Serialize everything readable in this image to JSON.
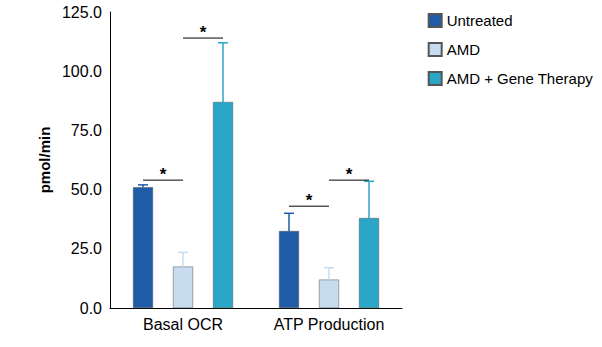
{
  "chart_data": {
    "type": "bar",
    "categories": [
      "Basal OCR",
      "ATP Production"
    ],
    "series": [
      {
        "name": "Untreated",
        "color": "#1f5ba6",
        "values": [
          51,
          32.5
        ],
        "errors": [
          1,
          7.5
        ]
      },
      {
        "name": "AMD",
        "color": "#c8dcf0",
        "values": [
          17.5,
          12
        ],
        "errors": [
          6,
          5
        ]
      },
      {
        "name": "AMD + Gene Therapy",
        "color": "#2aa6c6",
        "values": [
          87,
          38
        ],
        "errors": [
          25,
          15.5
        ]
      }
    ],
    "ylabel": "pmol/min",
    "ylim": [
      0,
      125
    ],
    "yticks": [
      {
        "value": 0,
        "label": "0.0"
      },
      {
        "value": 25,
        "label": "25.0"
      },
      {
        "value": 50,
        "label": "50.0"
      },
      {
        "value": 75,
        "label": "75.0"
      },
      {
        "value": 100,
        "label": "100.0"
      },
      {
        "value": 125,
        "label": "125.0"
      }
    ],
    "grid": false,
    "legend": "right",
    "annotations": [
      {
        "text": "*",
        "category": "Basal OCR",
        "from": "Untreated",
        "to": "AMD",
        "y": 54
      },
      {
        "text": "*",
        "category": "Basal OCR",
        "from": "AMD",
        "to": "AMD + Gene Therapy",
        "y": 114
      },
      {
        "text": "*",
        "category": "ATP Production",
        "from": "Untreated",
        "to": "AMD",
        "y": 43
      },
      {
        "text": "*",
        "category": "ATP Production",
        "from": "AMD",
        "to": "AMD + Gene Therapy",
        "y": 54
      }
    ]
  }
}
